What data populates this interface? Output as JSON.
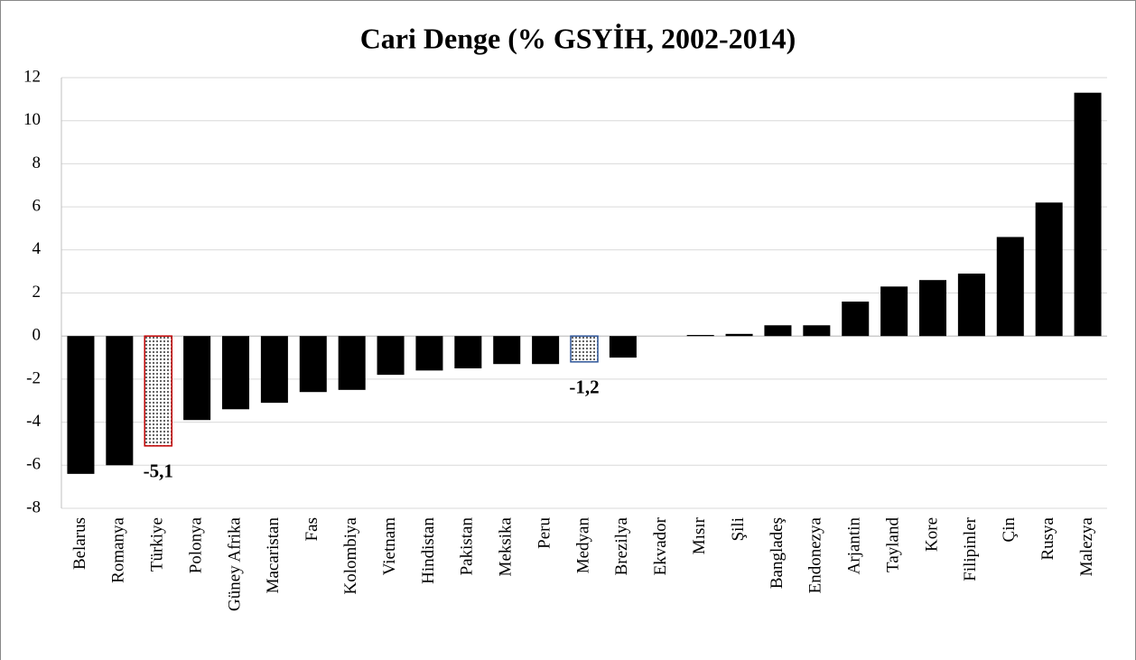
{
  "chart_data": {
    "type": "bar",
    "title": "Cari Denge (% GSYİH, 2002-2014)",
    "categories": [
      "Belarus",
      "Romanya",
      "Türkiye",
      "Polonya",
      "Güney Afrika",
      "Macaristan",
      "Fas",
      "Kolombiya",
      "Vietnam",
      "Hindistan",
      "Pakistan",
      "Meksika",
      "Peru",
      "Medyan",
      "Brezilya",
      "Ekvador",
      "Mısır",
      "Şili",
      "Bangladeş",
      "Endonezya",
      "Arjantin",
      "Tayland",
      "Kore",
      "Filipinler",
      "Çin",
      "Rusya",
      "Malezya"
    ],
    "values": [
      -6.4,
      -6.0,
      -5.1,
      -3.9,
      -3.4,
      -3.1,
      -2.6,
      -2.5,
      -1.8,
      -1.6,
      -1.5,
      -1.3,
      -1.3,
      -1.2,
      -1.0,
      0.0,
      0.05,
      0.1,
      0.5,
      0.5,
      1.6,
      2.3,
      2.6,
      2.9,
      4.6,
      6.2,
      11.3
    ],
    "value_labels": [
      null,
      null,
      "-5,1",
      null,
      null,
      null,
      null,
      null,
      null,
      null,
      null,
      null,
      null,
      "-1,2",
      null,
      null,
      null,
      null,
      null,
      null,
      null,
      null,
      null,
      null,
      null,
      null,
      null
    ],
    "color": "#000000",
    "edge_colors": [
      null,
      null,
      "#c00000",
      null,
      null,
      null,
      null,
      null,
      null,
      null,
      null,
      null,
      null,
      "#2e5597",
      null,
      null,
      null,
      null,
      null,
      null,
      null,
      null,
      null,
      null,
      null,
      null,
      null
    ],
    "ylim": [
      -8,
      12
    ],
    "yticks": [
      -8,
      -6,
      -4,
      -2,
      0,
      2,
      4,
      6,
      8,
      10,
      12
    ],
    "grid": true
  }
}
